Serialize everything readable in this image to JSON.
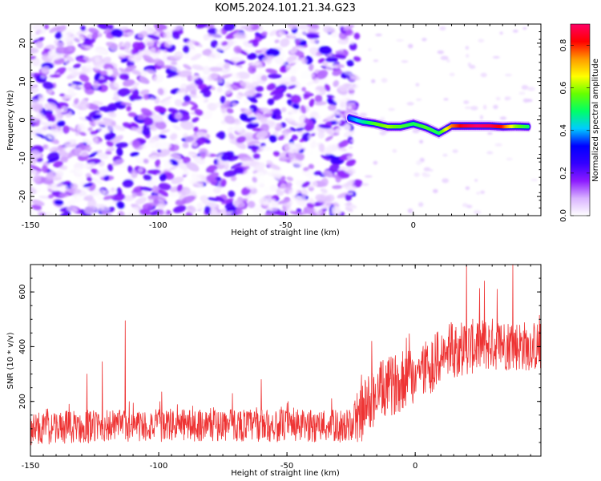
{
  "chart_data": [
    {
      "type": "heatmap",
      "title": "KOM5.2024.101.21.34.G23",
      "xlabel": "Height of straight line (km)",
      "ylabel": "Frequency (Hz)",
      "xlim": [
        -150,
        50
      ],
      "ylim": [
        -25,
        25
      ],
      "xticks": [
        -150,
        -100,
        -50,
        0
      ],
      "yticks": [
        -20,
        -10,
        0,
        10,
        20
      ],
      "colorbar": {
        "label": "Normalized spectral amplitude",
        "range": [
          0.0,
          0.9
        ],
        "ticks": [
          "0.0",
          "0.2",
          "0.4",
          "0.6",
          "0.8"
        ],
        "colors": [
          "#ffffff",
          "#d9b3ff",
          "#8c1aff",
          "#3300ff",
          "#0000ff",
          "#00ccff",
          "#00ff66",
          "#66ff00",
          "#ffff00",
          "#ff9900",
          "#ff0000",
          "#ff0066"
        ]
      },
      "noise_region": {
        "x": [
          -150,
          -25
        ],
        "y": [
          -25,
          25
        ],
        "amplitude": [
          0.0,
          0.25
        ]
      },
      "ridge": {
        "x": [
          -25,
          -20,
          -15,
          -10,
          -5,
          0,
          5,
          10,
          15,
          20,
          25,
          30,
          35,
          40,
          45
        ],
        "y": [
          0.5,
          -0.5,
          -1.0,
          -1.8,
          -1.8,
          -1.0,
          -2.0,
          -3.5,
          -1.6,
          -1.6,
          -1.6,
          -1.6,
          -1.8,
          -1.7,
          -1.8
        ],
        "amplitude": [
          0.35,
          0.45,
          0.55,
          0.6,
          0.55,
          0.5,
          0.55,
          0.5,
          0.75,
          0.85,
          0.9,
          0.88,
          0.8,
          0.6,
          0.5
        ]
      }
    },
    {
      "type": "line",
      "xlabel": "Height of straight line (km)",
      "ylabel": "SNR (10 * v/v)",
      "xlim": [
        -150,
        49
      ],
      "ylim": [
        0,
        700
      ],
      "xticks": [
        -150,
        -100,
        -50,
        0
      ],
      "yticks": [
        200,
        400,
        600
      ],
      "series": [
        {
          "color": "#ee3333",
          "trend": {
            "x": [
              -150,
              -120,
              -80,
              -40,
              -25,
              -15,
              0,
              15,
              30,
              49
            ],
            "y": [
              100,
              110,
              115,
              110,
              110,
              230,
              300,
              390,
              410,
              400
            ]
          },
          "spread": {
            "x": [
              -150,
              -25,
              -22,
              0,
              49
            ],
            "y": [
              60,
              60,
              110,
              110,
              90
            ]
          },
          "peaks": [
            {
              "x": -113,
              "y": 495
            },
            {
              "x": -122,
              "y": 345
            },
            {
              "x": -128,
              "y": 300
            },
            {
              "x": -60,
              "y": 280
            },
            {
              "x": -17,
              "y": 420
            },
            {
              "x": 20,
              "y": 700
            },
            {
              "x": 27,
              "y": 640
            },
            {
              "x": 38,
              "y": 700
            },
            {
              "x": 32,
              "y": 610
            }
          ]
        }
      ]
    }
  ]
}
